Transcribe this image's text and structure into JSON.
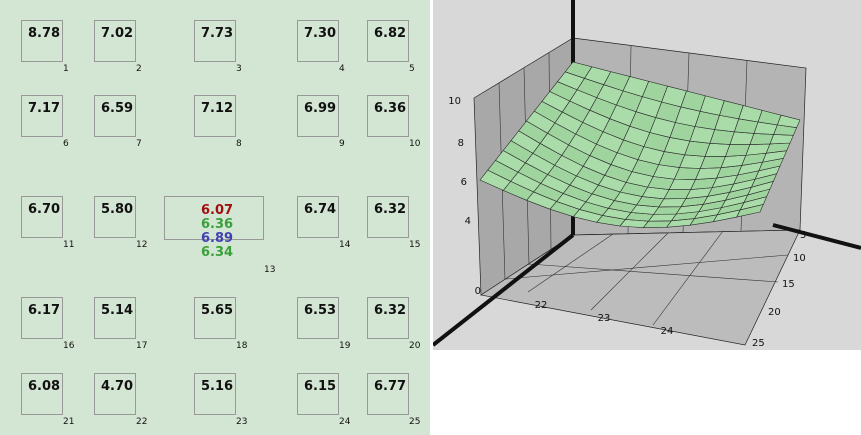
{
  "cells": [
    {
      "value": "8.78",
      "index": "1"
    },
    {
      "value": "7.02",
      "index": "2"
    },
    {
      "value": "7.73",
      "index": "3"
    },
    {
      "value": "7.30",
      "index": "4"
    },
    {
      "value": "6.82",
      "index": "5"
    },
    {
      "value": "7.17",
      "index": "6"
    },
    {
      "value": "6.59",
      "index": "7"
    },
    {
      "value": "7.12",
      "index": "8"
    },
    {
      "value": "6.99",
      "index": "9"
    },
    {
      "value": "6.36",
      "index": "10"
    },
    {
      "value": "6.70",
      "index": "11"
    },
    {
      "value": "5.80",
      "index": "12"
    },
    {
      "values": [
        "6.07",
        "6.36",
        "6.89",
        "6.34"
      ],
      "colors": [
        "#a01010",
        "#3aa03a",
        "#4040b0",
        "#3aa03a"
      ],
      "index": "13"
    },
    {
      "value": "6.74",
      "index": "14"
    },
    {
      "value": "6.32",
      "index": "15"
    },
    {
      "value": "6.17",
      "index": "16"
    },
    {
      "value": "5.14",
      "index": "17"
    },
    {
      "value": "5.65",
      "index": "18"
    },
    {
      "value": "6.53",
      "index": "19"
    },
    {
      "value": "6.32",
      "index": "20"
    },
    {
      "value": "6.08",
      "index": "21"
    },
    {
      "value": "4.70",
      "index": "22"
    },
    {
      "value": "5.16",
      "index": "23"
    },
    {
      "value": "6.15",
      "index": "24"
    },
    {
      "value": "6.77",
      "index": "25"
    }
  ],
  "plot": {
    "zticks": [
      "10",
      "8",
      "6",
      "4",
      "0"
    ],
    "xticks": [
      "22",
      "23",
      "24"
    ],
    "yticks": [
      "5",
      "10",
      "15",
      "20",
      "25"
    ]
  }
}
